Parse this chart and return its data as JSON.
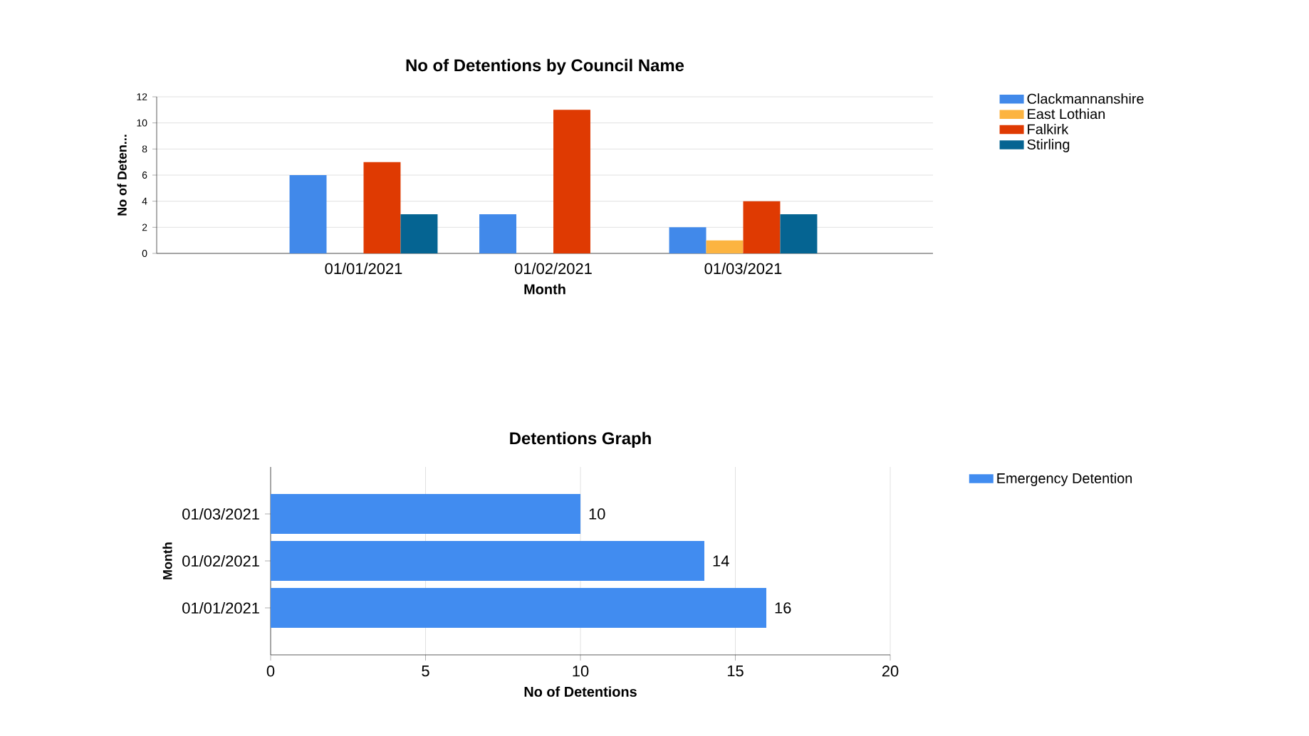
{
  "chart_data": [
    {
      "type": "bar",
      "title": "No of Detentions by Council Name",
      "xlabel": "Month",
      "ylabel": "No of Deten...",
      "categories": [
        "01/01/2021",
        "01/02/2021",
        "01/03/2021"
      ],
      "series": [
        {
          "name": "Clackmannanshire",
          "color": "#4189ea",
          "values": [
            6,
            3,
            2
          ]
        },
        {
          "name": "East Lothian",
          "color": "#fcb441",
          "values": [
            null,
            null,
            1
          ]
        },
        {
          "name": "Falkirk",
          "color": "#df3a02",
          "values": [
            7,
            11,
            4
          ]
        },
        {
          "name": "Stirling",
          "color": "#056492",
          "values": [
            3,
            null,
            3
          ]
        }
      ],
      "ylim": [
        0,
        12
      ],
      "yticks": [
        0,
        2,
        4,
        6,
        8,
        10,
        12
      ],
      "grid": "y",
      "legend": "right"
    },
    {
      "type": "bar",
      "orientation": "horizontal",
      "title": "Detentions Graph",
      "xlabel": "No of Detentions",
      "ylabel": "Month",
      "categories": [
        "01/03/2021",
        "01/02/2021",
        "01/01/2021"
      ],
      "series": [
        {
          "name": "Emergency Detention",
          "color": "#418cf0",
          "values": [
            10,
            14,
            16
          ]
        }
      ],
      "xlim": [
        0,
        20
      ],
      "xticks": [
        0,
        5,
        10,
        15,
        20
      ],
      "grid": "x",
      "legend": "top right",
      "data_labels": true
    }
  ]
}
